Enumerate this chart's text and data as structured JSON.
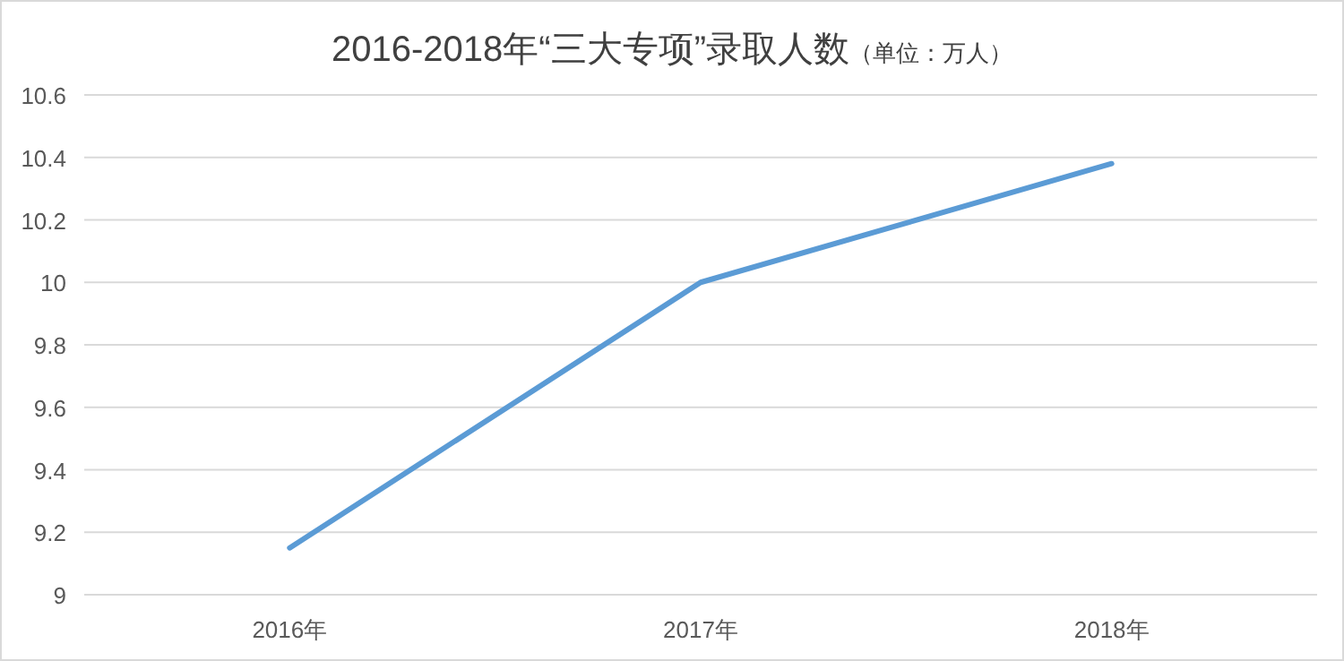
{
  "chart_data": {
    "type": "line",
    "title": "2016-2018年“三大专项”录取人数",
    "subtitle": "（单位：万人）",
    "categories": [
      "2016年",
      "2017年",
      "2018年"
    ],
    "series": [
      {
        "color": "#5b9bd5",
        "values": [
          9.15,
          10.0,
          10.38
        ]
      }
    ],
    "ylim": [
      9,
      10.6
    ],
    "yticks": [
      9,
      9.2,
      9.4,
      9.6,
      9.8,
      10,
      10.2,
      10.4,
      10.6
    ],
    "grid": "y",
    "marker": "none",
    "line_style": "solid"
  }
}
